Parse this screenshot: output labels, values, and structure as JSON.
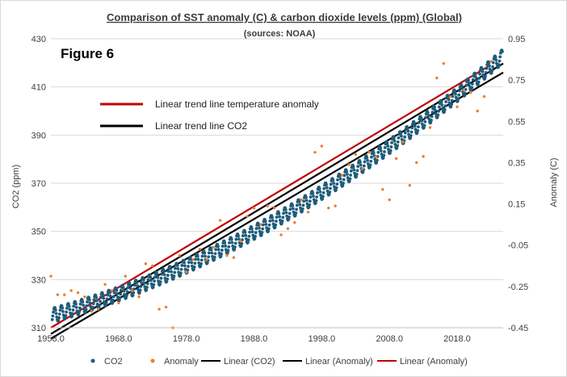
{
  "chart_data": {
    "type": "scatter",
    "title": "Comparison of SST anomaly (C)  & carbon dioxide levels (ppm) (Global)",
    "subtitle": "(sources: NOAA)",
    "figure_label": "Figure 6",
    "ylabel_left": "CO2 (ppm)",
    "ylabel_right": "Anomaly (C)",
    "xlabel": "",
    "xlim": [
      1958,
      2024.8
    ],
    "ylim_left": [
      310,
      430
    ],
    "ylim_right": [
      -0.45,
      0.95
    ],
    "x_ticks": [
      "1958.0",
      "1968.0",
      "1978.0",
      "1988.0",
      "1998.0",
      "2008.0",
      "2018.0"
    ],
    "x_tick_values": [
      1958,
      1968,
      1978,
      1988,
      1998,
      2008,
      2018
    ],
    "y_left_ticks": [
      "310",
      "330",
      "350",
      "370",
      "390",
      "410",
      "430"
    ],
    "y_left_tick_values": [
      310,
      330,
      350,
      370,
      390,
      410,
      430
    ],
    "y_right_ticks": [
      "-0.45",
      "-0.25",
      "-0.05",
      "0.15",
      "0.35",
      "0.55",
      "0.75",
      "0.95"
    ],
    "y_right_tick_values": [
      -0.45,
      -0.25,
      -0.05,
      0.15,
      0.35,
      0.55,
      0.75,
      0.95
    ],
    "grid": "horizontal",
    "co2_series": {
      "name": "CO2",
      "color": "#1f5c7a",
      "trend_model": {
        "base": 315,
        "linear": 0.78,
        "quadratic": 0.0125,
        "seasonal_amplitude": 3.0
      },
      "x_start": 1958.2,
      "x_end": 2024.7,
      "x_step": 0.0833
    },
    "anomaly_series": {
      "name": "Anomaly",
      "color": "#ed7d31",
      "x": [
        1958,
        1959,
        1960,
        1961,
        1962,
        1963,
        1964,
        1965,
        1966,
        1967,
        1968,
        1969,
        1970,
        1971,
        1972,
        1973,
        1974,
        1975,
        1976,
        1977,
        1978,
        1979,
        1980,
        1981,
        1982,
        1983,
        1984,
        1985,
        1986,
        1987,
        1988,
        1989,
        1990,
        1991,
        1992,
        1993,
        1994,
        1995,
        1996,
        1997,
        1998,
        1999,
        2000,
        2001,
        2002,
        2003,
        2004,
        2005,
        2006,
        2007,
        2008,
        2009,
        2010,
        2011,
        2012,
        2013,
        2014,
        2015,
        2016,
        2017,
        2018,
        2019,
        2020,
        2021,
        2022,
        2023
      ],
      "y": [
        -0.2,
        -0.29,
        -0.29,
        -0.27,
        -0.28,
        -0.3,
        -0.37,
        -0.36,
        -0.24,
        -0.27,
        -0.33,
        -0.2,
        -0.27,
        -0.3,
        -0.14,
        -0.15,
        -0.36,
        -0.35,
        -0.45,
        -0.1,
        -0.18,
        -0.12,
        -0.07,
        -0.12,
        -0.06,
        0.07,
        -0.1,
        -0.11,
        -0.03,
        0.09,
        0.13,
        0.05,
        0.14,
        0.13,
        0.0,
        0.03,
        0.06,
        0.17,
        0.11,
        0.4,
        0.43,
        0.13,
        0.14,
        0.29,
        0.34,
        0.39,
        0.32,
        0.4,
        0.38,
        0.22,
        0.17,
        0.37,
        0.45,
        0.24,
        0.35,
        0.38,
        0.52,
        0.76,
        0.83,
        0.67,
        0.62,
        0.7,
        0.69,
        0.6,
        0.67,
        0.84
      ]
    },
    "trend_lines": [
      {
        "name": "Linear (CO2)",
        "color": "#000000",
        "axis": "left",
        "x": [
          1958,
          2024.8
        ],
        "y": [
          305.5,
          416.0
        ]
      },
      {
        "name": "Linear (Anomaly)",
        "color": "#000000",
        "axis": "right",
        "x": [
          1958,
          2024.8
        ],
        "y": [
          -0.48,
          0.83
        ]
      },
      {
        "name": "Linear (Anomaly)",
        "color": "#c00000",
        "axis": "right",
        "x": [
          1958,
          2022.8
        ],
        "y": [
          -0.45,
          0.82
        ]
      }
    ],
    "inset_legend": [
      {
        "label": "Linear trend line temperature anomaly",
        "color": "#c00000"
      },
      {
        "label": "Linear trend line CO2",
        "color": "#000000"
      }
    ],
    "bottom_legend": [
      {
        "label": "CO2",
        "kind": "marker",
        "color": "#1f5c7a"
      },
      {
        "label": "Anomaly",
        "kind": "marker",
        "color": "#ed7d31"
      },
      {
        "label": "Linear (CO2)",
        "kind": "line",
        "color": "#000000"
      },
      {
        "label": "Linear (Anomaly)",
        "kind": "line",
        "color": "#000000"
      },
      {
        "label": "Linear (Anomaly)",
        "kind": "line",
        "color": "#c00000"
      }
    ]
  }
}
